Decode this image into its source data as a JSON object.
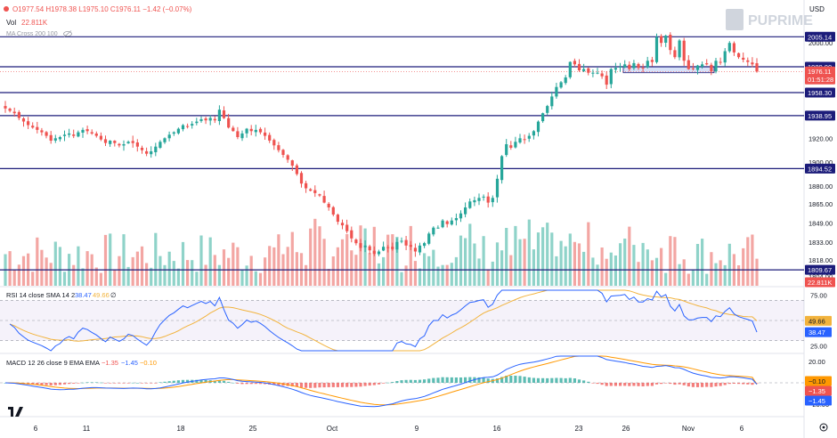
{
  "header": {
    "ohlc": "O1977.54 H1978.38 L1975.10 C1976.11 −1.42 (−0.07%)",
    "vol_label": "Vol",
    "vol_value": "22.811K",
    "ma_label": "MA Cross 200 100",
    "brand": "PUPRIME",
    "currency": "USD"
  },
  "rsi_legend": {
    "label": "RSI 14 close SMA 14 2",
    "v1": "38.47",
    "v2": "49.66",
    "v3": "∅"
  },
  "macd_legend": {
    "label": "MACD 12 26 close 9 EMA EMA",
    "v1": "−1.35",
    "v2": "−1.45",
    "v3": "−0.10"
  },
  "colors": {
    "up": "#26a69a",
    "down": "#ef5350",
    "vol_up": "#8fd3c9",
    "vol_down": "#f3a6a3",
    "level_line": "#1c1c7a",
    "rsi_line": "#2962ff",
    "rsi_sma": "#f2b33d",
    "macd_line": "#2962ff",
    "signal_line": "#ff9800",
    "price_tag": "#ef5350"
  },
  "chart_data": [
    {
      "type": "candlestick",
      "title": "",
      "price_axis_ticks": [
        2000.0,
        1980.0,
        1958.3,
        1938.95,
        1920.0,
        1900.0,
        1894.52,
        1880.0,
        1865.0,
        1849.0,
        1833.0,
        1818.0,
        1809.67,
        1804.0
      ],
      "ylim": [
        1800,
        2030
      ],
      "x_tick_labels": [
        "6",
        "11",
        "18",
        "25",
        "Oct",
        "9",
        "16",
        "23",
        "26",
        "Nov",
        "6"
      ],
      "horizontal_levels": [
        2005.14,
        1980.0,
        1958.3,
        1938.95,
        1894.52,
        1809.67
      ],
      "price_tags": [
        {
          "text": "2005.14",
          "kind": "level"
        },
        {
          "text": "1980.00",
          "kind": "level"
        },
        {
          "text": "1976.11",
          "kind": "current"
        },
        {
          "text": "01:51:28",
          "kind": "countdown"
        },
        {
          "text": "1958.30",
          "kind": "level"
        },
        {
          "text": "1938.95",
          "kind": "level"
        },
        {
          "text": "1894.52",
          "kind": "level"
        },
        {
          "text": "1809.67",
          "kind": "level"
        },
        {
          "text": "22.811K",
          "kind": "volume"
        }
      ],
      "support_zone": {
        "from": 1975,
        "to": 1980
      },
      "close_path": [
        1945,
        1943,
        1941,
        1937,
        1934,
        1931,
        1929,
        1927,
        1925,
        1922,
        1918,
        1920,
        1921,
        1923,
        1924,
        1922,
        1925,
        1927,
        1926,
        1924,
        1922,
        1919,
        1916,
        1918,
        1916,
        1914,
        1915,
        1917,
        1916,
        1913,
        1910,
        1907,
        1909,
        1913,
        1917,
        1920,
        1923,
        1925,
        1928,
        1931,
        1930,
        1932,
        1934,
        1936,
        1935,
        1937,
        1935,
        1944,
        1937,
        1929,
        1926,
        1921,
        1924,
        1928,
        1926,
        1927,
        1925,
        1922,
        1918,
        1914,
        1910,
        1906,
        1902,
        1897,
        1890,
        1882,
        1878,
        1876,
        1874,
        1872,
        1866,
        1862,
        1856,
        1850,
        1847,
        1842,
        1836,
        1832,
        1828,
        1830,
        1826,
        1823,
        1825,
        1829,
        1828,
        1827,
        1833,
        1834,
        1830,
        1829,
        1825,
        1830,
        1832,
        1840,
        1845,
        1845,
        1851,
        1848,
        1851,
        1853,
        1857,
        1862,
        1867,
        1868,
        1870,
        1871,
        1866,
        1870,
        1886,
        1905,
        1915,
        1912,
        1917,
        1920,
        1919,
        1922,
        1926,
        1934,
        1941,
        1947,
        1955,
        1963,
        1967,
        1971,
        1984,
        1982,
        1977,
        1978,
        1975,
        1975,
        1975,
        1972,
        1965,
        1978,
        1979,
        1980,
        1982,
        1978,
        1983,
        1979,
        1979,
        1985,
        1984,
        2005,
        2000,
        2006,
        1994,
        1988,
        2002,
        1985,
        1978,
        1978,
        1981,
        1982,
        1982,
        1976,
        1985,
        1984,
        1993,
        2000,
        1992,
        1988,
        1986,
        1984,
        1982,
        1976
      ],
      "volume_label": "22.811K"
    },
    {
      "type": "line",
      "name": "RSI",
      "title": "RSI 14 close SMA 14 2",
      "ylim": [
        20,
        80
      ],
      "axis_ticks": [
        75.0,
        50.0,
        25.0
      ],
      "bands": [
        30,
        70
      ],
      "series": [
        {
          "name": "RSI",
          "last": 38.47
        },
        {
          "name": "SMA",
          "last": 49.66
        }
      ]
    },
    {
      "type": "bar",
      "name": "MACD",
      "title": "MACD 12 26 close 9 EMA EMA",
      "ylim": [
        -30,
        25
      ],
      "axis_ticks": [
        20.0,
        0.0,
        -20.0
      ],
      "series": [
        {
          "name": "MACD",
          "last": -1.45
        },
        {
          "name": "Signal",
          "last": -1.35
        },
        {
          "name": "Histogram",
          "last": -0.1
        }
      ]
    }
  ]
}
